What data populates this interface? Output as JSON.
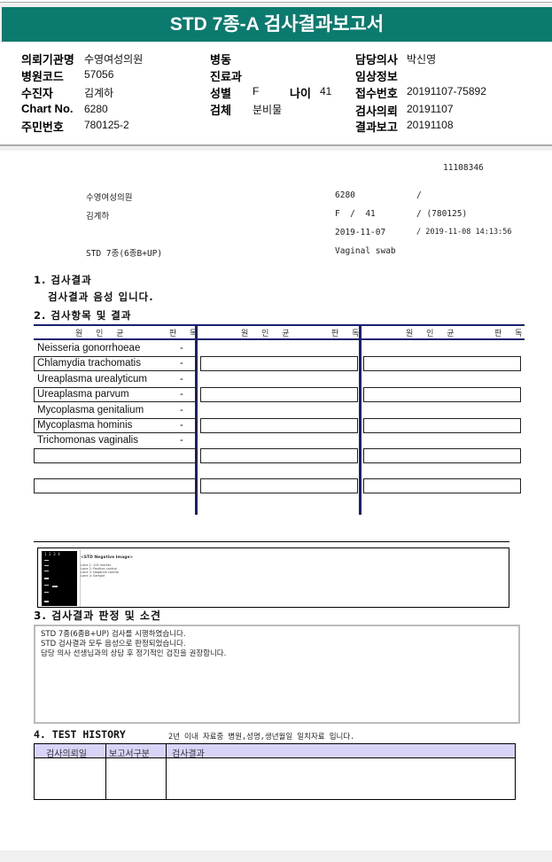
{
  "title": "STD 7종-A 검사결과보고서",
  "info": {
    "institution_label": "의뢰기관명",
    "institution": "수영여성의원",
    "hospital_code_label": "병원코드",
    "hospital_code": "57056",
    "patient_label": "수진자",
    "patient": "김계하",
    "chart_label": "Chart No.",
    "chart": "6280",
    "rrn_label": "주민번호",
    "rrn": "780125-2",
    "ward_label": "병동",
    "ward": "",
    "dept_label": "진료과",
    "dept": "",
    "sex_label": "성별",
    "sex": "F",
    "age_label": "나이",
    "age": "41",
    "specimen_label": "검체",
    "specimen": "분비물",
    "doctor_label": "담당의사",
    "doctor": "박신영",
    "clinical_label": "임상정보",
    "clinical": "",
    "receipt_label": "접수번호",
    "receipt": "20191107-75892",
    "request_label": "검사의뢰",
    "request": "20191107",
    "report_label": "결과보고",
    "report": "20191108"
  },
  "report": {
    "id": "11108346",
    "institution": "수영여성의원",
    "patient": "김계하",
    "test": "STD 7종(6종B+UP)",
    "chart": "6280",
    "slash1": "/",
    "sex_age": "F  /  41",
    "birth": "/ (780125)",
    "request_date": "2019-11-07",
    "collect_datetime": "/ 2019-11-08 14:13:56",
    "specimen": "Vaginal swab"
  },
  "section1": {
    "title": "1. 검사결과",
    "result": "검사결과 음성 입니다."
  },
  "section2": {
    "title": "2. 검사항목 및 결과",
    "col_organism": "원 인 균",
    "col_result": "판 독",
    "items": [
      {
        "name": "Neisseria gonorrhoeae",
        "result": "-"
      },
      {
        "name": "Chlamydia trachomatis",
        "result": "-"
      },
      {
        "name": "Ureaplasma urealyticum",
        "result": "-"
      },
      {
        "name": "Ureaplasma parvum",
        "result": "-"
      },
      {
        "name": "Mycoplasma genitalium",
        "result": "-"
      },
      {
        "name": "Mycoplasma hominis",
        "result": "-"
      },
      {
        "name": "Trichomonas vaginalis",
        "result": "-"
      }
    ]
  },
  "gel": {
    "caption": "<STD Negative Image>",
    "lanes": "1  2  3  4",
    "legend": [
      "Lane 1: 100 marker",
      "Lane 2: Positive control",
      "Lane 3: Negative control",
      "Lane 4: Sample"
    ]
  },
  "section3": {
    "title": "3. 검사결과 판정 및 소견",
    "lines": [
      "STD 7종(6종B+UP) 검사를 시행하였습니다.",
      "STD 검사결과 모두 음성으로 판정되었습니다.",
      "담당 의사 선생님과의 상담 후 정기적인 검진을 권장합니다."
    ]
  },
  "section4": {
    "title": "4. TEST HISTORY",
    "note": "2년 이내 자료중 병원,성명,생년월일 일치자료 입니다.",
    "columns": [
      "검사의뢰일",
      "보고서구분",
      "검사결과"
    ]
  },
  "colors": {
    "banner": "#0b7b70",
    "table_rule": "#1a1f6e",
    "history_header": "#d8d4f8"
  }
}
